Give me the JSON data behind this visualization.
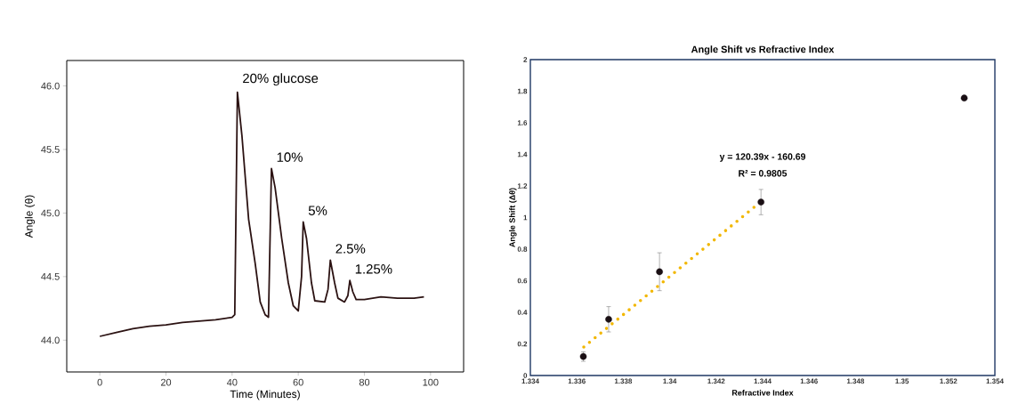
{
  "chart_data": [
    {
      "type": "line",
      "xlabel": "Time (Minutes)",
      "ylabel": "Angle (θ)",
      "color": "#2b1212",
      "marker": "none",
      "line_style": "solid",
      "x": [
        0,
        5,
        10,
        15,
        20,
        25,
        30,
        35,
        40,
        40.8,
        41.6,
        43,
        45,
        47,
        48.5,
        50,
        51,
        51.9,
        53,
        55,
        57,
        58.5,
        60,
        61,
        61.5,
        62.5,
        64,
        65,
        68,
        69,
        69.7,
        71,
        72,
        74,
        75,
        75.6,
        76.5,
        77.5,
        80,
        85,
        90,
        95,
        98
      ],
      "values": [
        44.03,
        44.06,
        44.09,
        44.11,
        44.12,
        44.14,
        44.15,
        44.16,
        44.18,
        44.2,
        45.95,
        45.6,
        44.95,
        44.6,
        44.3,
        44.2,
        44.18,
        45.35,
        45.2,
        44.8,
        44.45,
        44.27,
        44.23,
        44.5,
        44.93,
        44.8,
        44.45,
        44.31,
        44.3,
        44.4,
        44.63,
        44.45,
        44.33,
        44.3,
        44.35,
        44.47,
        44.38,
        44.32,
        44.32,
        44.34,
        44.33,
        44.33,
        44.34
      ],
      "xlim": [
        -10,
        110
      ],
      "xticks": [
        0,
        20,
        40,
        60,
        80,
        100
      ],
      "ylim": [
        43.75,
        46.2
      ],
      "yticks": [
        {
          "value": 44,
          "label": "44.0"
        },
        {
          "value": 44.5,
          "label": "44.5"
        },
        {
          "value": 45,
          "label": "45.0"
        },
        {
          "value": 45.5,
          "label": "45.5"
        },
        {
          "value": 46,
          "label": "46.0"
        }
      ],
      "annotations": [
        {
          "text": "20% glucose",
          "x": 41.6,
          "y": 45.95
        },
        {
          "text": "10%",
          "x": 51.9,
          "y": 45.35
        },
        {
          "text": "5%",
          "x": 61.5,
          "y": 44.93
        },
        {
          "text": "2.5%",
          "x": 69.7,
          "y": 44.63
        },
        {
          "text": "1.25%",
          "x": 75.6,
          "y": 44.47
        }
      ]
    },
    {
      "type": "scatter",
      "title": "Angle Shift vs Refractive Index",
      "xlabel": "Refractive Index",
      "ylabel": "Angle Shift (Δθ)",
      "marker": "circle",
      "xlim": [
        1.334,
        1.354
      ],
      "xticks": [
        1.334,
        1.336,
        1.338,
        1.34,
        1.342,
        1.344,
        1.346,
        1.348,
        1.35,
        1.352,
        1.354
      ],
      "ylim": [
        0,
        2
      ],
      "yticks": [
        0,
        0.2,
        0.4,
        0.6,
        0.8,
        1,
        1.2,
        1.4,
        1.6,
        1.8,
        2
      ],
      "series": [
        {
          "type": "scatter",
          "color": "#1a0f14",
          "x": [
            1.33628,
            1.33737,
            1.33956,
            1.34393,
            1.35268
          ],
          "values": [
            0.12,
            0.356,
            0.657,
            1.098,
            1.757
          ],
          "errors": [
            0.03,
            0.08,
            0.12,
            0.08,
            null
          ]
        },
        {
          "type": "line",
          "color": "#f2b700",
          "marker": "none",
          "line_style": "dotted",
          "x": [
            1.3363,
            1.344
          ],
          "values": [
            0.18,
            1.11
          ]
        }
      ],
      "annotations": [
        "y = 120.39x - 160.69",
        "R² = 0.9805"
      ]
    }
  ]
}
